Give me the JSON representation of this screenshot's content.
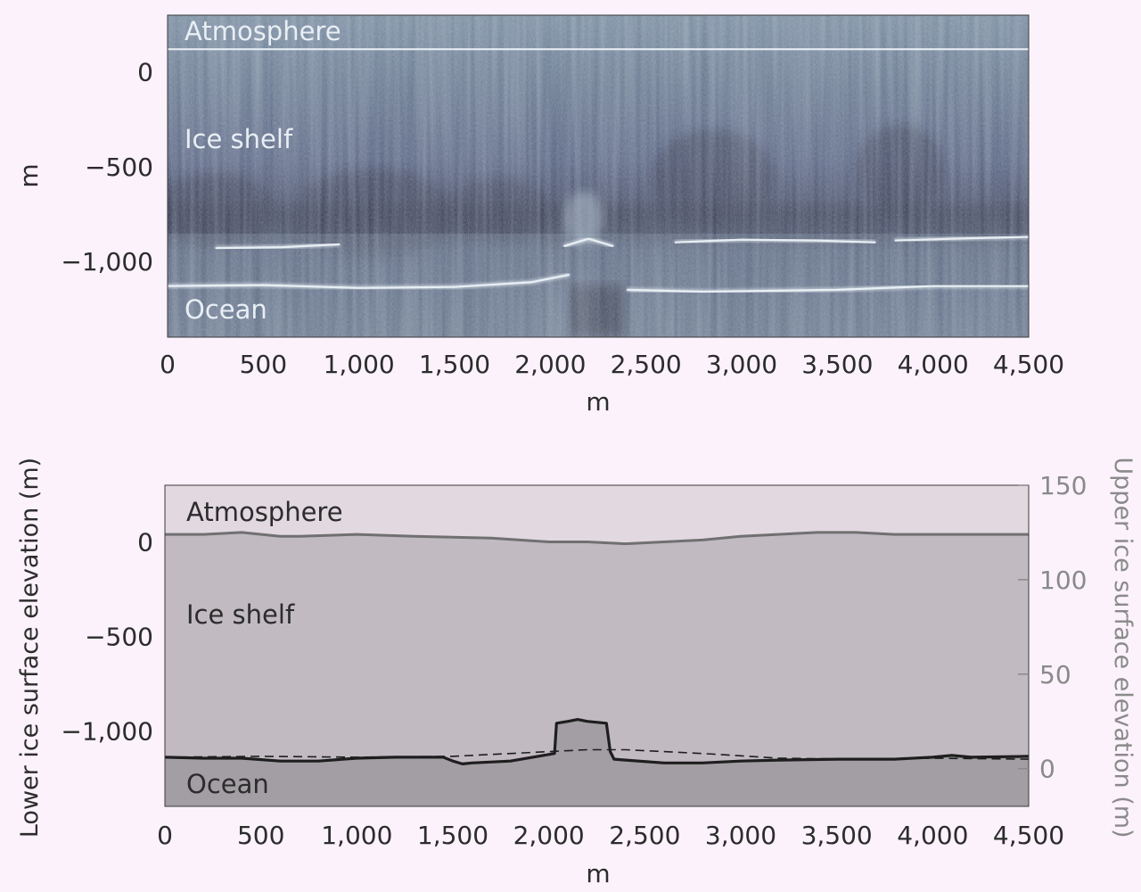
{
  "chart_data": [
    {
      "type": "heatmap",
      "panel": "radar-echogram",
      "xlabel": "m",
      "ylabel": "m",
      "xlim": [
        0,
        4500
      ],
      "ylim": [
        -1400,
        300
      ],
      "xticks": [
        0,
        500,
        1000,
        1500,
        2000,
        2500,
        3000,
        3500,
        4000,
        4500
      ],
      "xtick_labels": [
        "0",
        "500",
        "1,000",
        "1,500",
        "2,000",
        "2,500",
        "3,000",
        "3,500",
        "4,000",
        "4,500"
      ],
      "yticks": [
        0,
        -500,
        -1000
      ],
      "ytick_labels": [
        "0",
        "−500",
        "−1,000"
      ],
      "annotations": [
        {
          "text": "Atmosphere",
          "x": 100,
          "y": 220
        },
        {
          "text": "Ice shelf",
          "x": 100,
          "y": -360
        },
        {
          "text": "Ocean",
          "x": 100,
          "y": -1300
        }
      ],
      "reflectors": [
        {
          "name": "surface",
          "x": [
            0,
            4500
          ],
          "y": [
            120,
            120
          ]
        },
        {
          "name": "ice base left",
          "x": [
            0,
            500,
            1000,
            1500,
            1900,
            2100
          ],
          "y": [
            -1130,
            -1125,
            -1140,
            -1135,
            -1110,
            -1070
          ]
        },
        {
          "name": "ice base right",
          "x": [
            2400,
            2800,
            3500,
            4000,
            4500
          ],
          "y": [
            -1150,
            -1160,
            -1150,
            -1130,
            -1130
          ]
        },
        {
          "name": "internal left",
          "x": [
            250,
            600,
            900
          ],
          "y": [
            -930,
            -925,
            -910
          ]
        },
        {
          "name": "internal middle",
          "x": [
            2650,
            3000,
            3400,
            3700
          ],
          "y": [
            -900,
            -885,
            -890,
            -900
          ]
        },
        {
          "name": "internal right",
          "x": [
            3800,
            4100,
            4500
          ],
          "y": [
            -890,
            -880,
            -870
          ]
        },
        {
          "name": "channel apex",
          "x": [
            2070,
            2200,
            2330
          ],
          "y": [
            -920,
            -880,
            -920
          ]
        }
      ],
      "colormap": [
        "#1e2337",
        "#5a6a86",
        "#dce9f4"
      ]
    },
    {
      "type": "line",
      "panel": "interpretation",
      "xlabel": "m",
      "ylabel": "Lower ice surface elevation (m)",
      "y2label": "Upper ice surface elevation (m)",
      "xlim": [
        0,
        4500
      ],
      "ylim": [
        -1400,
        300
      ],
      "y2lim": [
        -20,
        150
      ],
      "xticks": [
        0,
        500,
        1000,
        1500,
        2000,
        2500,
        3000,
        3500,
        4000,
        4500
      ],
      "xtick_labels": [
        "0",
        "500",
        "1,000",
        "1,500",
        "2,000",
        "2,500",
        "3,000",
        "3,500",
        "4,000",
        "4,500"
      ],
      "yticks": [
        0,
        -500,
        -1000
      ],
      "ytick_labels": [
        "0",
        "−500",
        "−1,000"
      ],
      "y2ticks": [
        0,
        50,
        100,
        150
      ],
      "y2tick_labels": [
        "0",
        "50",
        "100",
        "150"
      ],
      "annotations": [
        {
          "text": "Atmosphere",
          "x": 110,
          "y": 170
        },
        {
          "text": "Ice shelf",
          "x": 110,
          "y": -380
        },
        {
          "text": "Ocean",
          "x": 110,
          "y": -1310
        }
      ],
      "series": [
        {
          "role": "upper ice surface",
          "axis": "right",
          "color": "#707070",
          "x": [
            0,
            200,
            400,
            600,
            700,
            1000,
            1300,
            1700,
            2000,
            2200,
            2400,
            2600,
            2800,
            3000,
            3400,
            3600,
            3800,
            4200,
            4500
          ],
          "y": [
            124,
            124,
            125,
            123,
            123,
            124,
            123,
            122,
            120,
            120,
            119,
            120,
            121,
            123,
            125,
            125,
            124,
            124,
            124
          ]
        },
        {
          "role": "lower ice surface",
          "axis": "left",
          "color": "#1e1e1e",
          "x": [
            0,
            200,
            400,
            600,
            800,
            1000,
            1200,
            1450,
            1500,
            1550,
            1600,
            1800,
            2000,
            2030,
            2040,
            2100,
            2150,
            2200,
            2300,
            2320,
            2340,
            2400,
            2600,
            2800,
            3000,
            3200,
            3500,
            3800,
            4000,
            4100,
            4200,
            4500
          ],
          "y": [
            -1140,
            -1145,
            -1145,
            -1160,
            -1160,
            -1145,
            -1140,
            -1140,
            -1160,
            -1175,
            -1170,
            -1160,
            -1125,
            -1120,
            -960,
            -950,
            -940,
            -950,
            -960,
            -1110,
            -1150,
            -1155,
            -1170,
            -1170,
            -1160,
            -1155,
            -1150,
            -1150,
            -1140,
            -1130,
            -1140,
            -1135
          ]
        },
        {
          "role": "smoothed lower surface",
          "axis": "left",
          "color": "#1e1e1e",
          "dashed": true,
          "x": [
            0,
            500,
            1000,
            1500,
            2000,
            2200,
            2400,
            2800,
            3200,
            3600,
            4000,
            4500
          ],
          "y": [
            -1140,
            -1135,
            -1140,
            -1135,
            -1110,
            -1100,
            -1100,
            -1120,
            -1145,
            -1150,
            -1145,
            -1150
          ]
        }
      ],
      "regions": [
        {
          "name": "atmosphere",
          "color": "#e2d8e0"
        },
        {
          "name": "ice shelf",
          "color": "#c1bac1"
        },
        {
          "name": "ocean",
          "color": "#a29ea3"
        }
      ]
    }
  ]
}
